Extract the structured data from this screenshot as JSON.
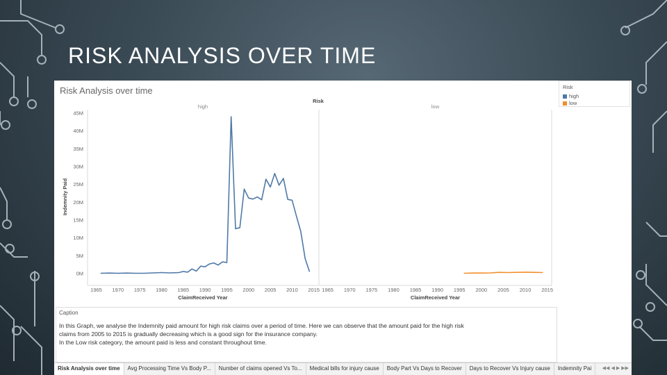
{
  "slide": {
    "title": "RISK ANALYSIS OVER TIME"
  },
  "viz": {
    "title": "Risk Analysis over time"
  },
  "chart_data": {
    "type": "line",
    "title": "Risk Analysis over time",
    "column_header": "Risk",
    "panels": [
      "high",
      "low"
    ],
    "xlabel": "ClaimReceived Year",
    "ylabel": "Indemnity Paid",
    "x_ticks": [
      1965,
      1970,
      1975,
      1980,
      1985,
      1990,
      1995,
      2000,
      2005,
      2010,
      2015
    ],
    "y_ticks": [
      "0M",
      "5M",
      "10M",
      "15M",
      "20M",
      "25M",
      "30M",
      "35M",
      "40M",
      "45M"
    ],
    "xlim": [
      1963,
      2016
    ],
    "ylim": [
      0,
      46
    ],
    "y_unit": "M",
    "grid": false,
    "legend_position": "top-right",
    "series": [
      {
        "name": "high",
        "color": "#4e79a7",
        "x": [
          1966,
          1968,
          1970,
          1972,
          1974,
          1976,
          1978,
          1980,
          1982,
          1984,
          1985,
          1986,
          1987,
          1988,
          1989,
          1990,
          1991,
          1992,
          1993,
          1994,
          1995,
          1996,
          1997,
          1998,
          1999,
          2000,
          2001,
          2002,
          2003,
          2004,
          2005,
          2006,
          2007,
          2008,
          2009,
          2010,
          2011,
          2012,
          2013,
          2014
        ],
        "y": [
          0.1,
          0.15,
          0.1,
          0.15,
          0.1,
          0.1,
          0.2,
          0.3,
          0.2,
          0.3,
          0.6,
          0.4,
          1.3,
          0.7,
          2.1,
          1.9,
          2.7,
          3.0,
          2.4,
          3.3,
          3.1,
          44.0,
          12.6,
          12.9,
          23.7,
          21.2,
          20.9,
          21.5,
          20.7,
          26.5,
          24.3,
          28.1,
          24.8,
          26.7,
          20.8,
          20.6,
          16.1,
          11.8,
          4.2,
          0.5
        ]
      },
      {
        "name": "low",
        "color": "#f28e2b",
        "x": [
          1996,
          1998,
          2000,
          2002,
          2004,
          2006,
          2008,
          2010,
          2012,
          2014
        ],
        "y": [
          0.1,
          0.15,
          0.15,
          0.2,
          0.35,
          0.3,
          0.35,
          0.4,
          0.35,
          0.3
        ]
      }
    ]
  },
  "legend": {
    "title": "Risk",
    "items": [
      {
        "label": "high",
        "color": "#4e79a7"
      },
      {
        "label": "low",
        "color": "#f28e2b"
      }
    ]
  },
  "caption": {
    "label": "Caption",
    "lines": [
      "In this Graph, we analyse the Indemnity paid amount for high risk claims over a period of time. Here we can observe that the amount paid for the high risk",
      "claims from 2005 to 2015 is gradually decreasing which is a good sign for the insurance company.",
      "In the Low risk category, the amount paid is less and constant throughout time."
    ]
  },
  "tabs": [
    "Risk Analysis over time",
    "Avg Processing Time Vs Body P...",
    "Number of claims opened Vs To...",
    "Medical bills for injury cause",
    "Body Part Vs Days to Recover",
    "Days to Recover Vs Injury cause",
    "Indemnity Pai"
  ]
}
